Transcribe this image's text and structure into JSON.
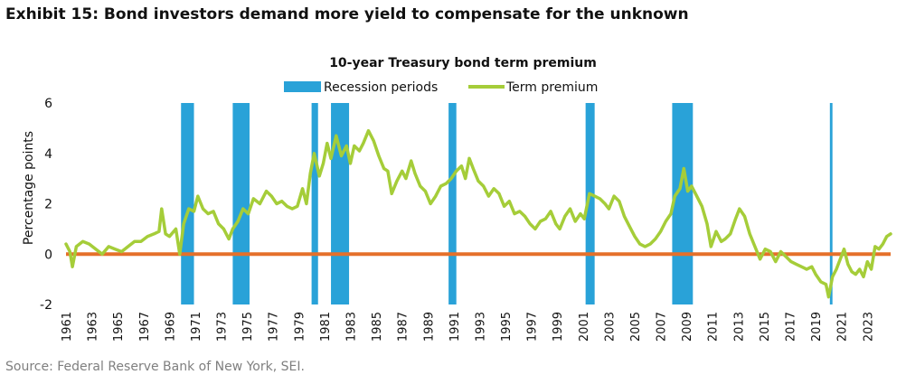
{
  "exhibit_title": "Exhibit 15: Bond investors demand more yield to compensate for the unknown",
  "source": "Source: Federal Reserve Bank of New York, SEI.",
  "colors": {
    "recession": "#29a2d8",
    "term_premium": "#a5cd39",
    "zero_line": "#e5702a",
    "text": "#111111",
    "source_text": "#7f7f7f"
  },
  "chart_data": {
    "type": "line",
    "title": "10-year Treasury bond term premium",
    "ylabel": "Percentage points",
    "xlabel": "",
    "ylim": [
      -2,
      6
    ],
    "yticks": [
      "6",
      "4",
      "2",
      "0",
      "-2"
    ],
    "xlim": [
      1961,
      2024.8
    ],
    "xticks": [
      "1961",
      "1963",
      "1965",
      "1967",
      "1969",
      "1971",
      "1973",
      "1975",
      "1977",
      "1979",
      "1981",
      "1983",
      "1985",
      "1987",
      "1989",
      "1991",
      "1993",
      "1995",
      "1997",
      "1999",
      "2001",
      "2003",
      "2005",
      "2007",
      "2009",
      "2011",
      "2013",
      "2015",
      "2017",
      "2019",
      "2021",
      "2023"
    ],
    "grid": false,
    "legend": {
      "position": "top",
      "recession_label": "Recession periods",
      "series_label": "Term premium"
    },
    "recessions": [
      {
        "start": 1969.9,
        "end": 1970.9
      },
      {
        "start": 1973.9,
        "end": 1975.2
      },
      {
        "start": 1980.0,
        "end": 1980.5
      },
      {
        "start": 1981.5,
        "end": 1982.9
      },
      {
        "start": 1990.6,
        "end": 1991.2
      },
      {
        "start": 2001.2,
        "end": 2001.9
      },
      {
        "start": 2007.9,
        "end": 2009.5
      },
      {
        "start": 2020.1,
        "end": 2020.3
      }
    ],
    "reference_line": {
      "y": 0
    },
    "series": [
      {
        "name": "Term premium",
        "points": [
          [
            1961.0,
            0.4
          ],
          [
            1961.3,
            0.1
          ],
          [
            1961.5,
            -0.5
          ],
          [
            1961.8,
            0.3
          ],
          [
            1962.3,
            0.5
          ],
          [
            1962.8,
            0.4
          ],
          [
            1963.3,
            0.2
          ],
          [
            1963.8,
            0.0
          ],
          [
            1964.3,
            0.3
          ],
          [
            1964.8,
            0.2
          ],
          [
            1965.3,
            0.1
          ],
          [
            1965.8,
            0.3
          ],
          [
            1966.3,
            0.5
          ],
          [
            1966.8,
            0.5
          ],
          [
            1967.3,
            0.7
          ],
          [
            1967.8,
            0.8
          ],
          [
            1968.2,
            0.9
          ],
          [
            1968.4,
            1.8
          ],
          [
            1968.7,
            0.8
          ],
          [
            1969.0,
            0.7
          ],
          [
            1969.5,
            1.0
          ],
          [
            1969.8,
            0.0
          ],
          [
            1970.1,
            1.2
          ],
          [
            1970.5,
            1.8
          ],
          [
            1970.9,
            1.7
          ],
          [
            1971.2,
            2.3
          ],
          [
            1971.6,
            1.8
          ],
          [
            1972.0,
            1.6
          ],
          [
            1972.4,
            1.7
          ],
          [
            1972.8,
            1.2
          ],
          [
            1973.2,
            1.0
          ],
          [
            1973.6,
            0.6
          ],
          [
            1973.9,
            1.0
          ],
          [
            1974.3,
            1.3
          ],
          [
            1974.7,
            1.8
          ],
          [
            1975.1,
            1.6
          ],
          [
            1975.5,
            2.2
          ],
          [
            1976.0,
            2.0
          ],
          [
            1976.5,
            2.5
          ],
          [
            1976.9,
            2.3
          ],
          [
            1977.3,
            2.0
          ],
          [
            1977.7,
            2.1
          ],
          [
            1978.1,
            1.9
          ],
          [
            1978.5,
            1.8
          ],
          [
            1978.9,
            1.9
          ],
          [
            1979.3,
            2.6
          ],
          [
            1979.6,
            2.0
          ],
          [
            1979.9,
            3.2
          ],
          [
            1980.2,
            4.0
          ],
          [
            1980.6,
            3.1
          ],
          [
            1980.9,
            3.6
          ],
          [
            1981.2,
            4.4
          ],
          [
            1981.5,
            3.8
          ],
          [
            1981.9,
            4.7
          ],
          [
            1982.3,
            3.9
          ],
          [
            1982.7,
            4.3
          ],
          [
            1983.0,
            3.6
          ],
          [
            1983.3,
            4.3
          ],
          [
            1983.7,
            4.1
          ],
          [
            1984.0,
            4.4
          ],
          [
            1984.4,
            4.9
          ],
          [
            1984.8,
            4.5
          ],
          [
            1985.2,
            3.9
          ],
          [
            1985.6,
            3.4
          ],
          [
            1985.9,
            3.3
          ],
          [
            1986.2,
            2.4
          ],
          [
            1986.6,
            2.9
          ],
          [
            1987.0,
            3.3
          ],
          [
            1987.3,
            3.0
          ],
          [
            1987.7,
            3.7
          ],
          [
            1988.0,
            3.2
          ],
          [
            1988.4,
            2.7
          ],
          [
            1988.8,
            2.5
          ],
          [
            1989.2,
            2.0
          ],
          [
            1989.6,
            2.3
          ],
          [
            1990.0,
            2.7
          ],
          [
            1990.4,
            2.8
          ],
          [
            1990.8,
            3.0
          ],
          [
            1991.2,
            3.3
          ],
          [
            1991.6,
            3.5
          ],
          [
            1991.9,
            3.0
          ],
          [
            1992.2,
            3.8
          ],
          [
            1992.5,
            3.4
          ],
          [
            1992.9,
            2.9
          ],
          [
            1993.3,
            2.7
          ],
          [
            1993.7,
            2.3
          ],
          [
            1994.1,
            2.6
          ],
          [
            1994.5,
            2.4
          ],
          [
            1994.9,
            1.9
          ],
          [
            1995.3,
            2.1
          ],
          [
            1995.7,
            1.6
          ],
          [
            1996.1,
            1.7
          ],
          [
            1996.5,
            1.5
          ],
          [
            1996.9,
            1.2
          ],
          [
            1997.3,
            1.0
          ],
          [
            1997.7,
            1.3
          ],
          [
            1998.1,
            1.4
          ],
          [
            1998.5,
            1.7
          ],
          [
            1998.9,
            1.2
          ],
          [
            1999.2,
            1.0
          ],
          [
            1999.6,
            1.5
          ],
          [
            2000.0,
            1.8
          ],
          [
            2000.4,
            1.3
          ],
          [
            2000.8,
            1.6
          ],
          [
            2001.1,
            1.4
          ],
          [
            2001.5,
            2.4
          ],
          [
            2001.9,
            2.3
          ],
          [
            2002.3,
            2.2
          ],
          [
            2002.7,
            2.0
          ],
          [
            2003.0,
            1.8
          ],
          [
            2003.4,
            2.3
          ],
          [
            2003.8,
            2.1
          ],
          [
            2004.2,
            1.5
          ],
          [
            2004.6,
            1.1
          ],
          [
            2005.0,
            0.7
          ],
          [
            2005.4,
            0.4
          ],
          [
            2005.8,
            0.3
          ],
          [
            2006.2,
            0.4
          ],
          [
            2006.6,
            0.6
          ],
          [
            2007.0,
            0.9
          ],
          [
            2007.4,
            1.3
          ],
          [
            2007.8,
            1.6
          ],
          [
            2008.1,
            2.3
          ],
          [
            2008.5,
            2.6
          ],
          [
            2008.8,
            3.4
          ],
          [
            2009.1,
            2.5
          ],
          [
            2009.4,
            2.7
          ],
          [
            2009.8,
            2.3
          ],
          [
            2010.2,
            1.9
          ],
          [
            2010.6,
            1.2
          ],
          [
            2010.9,
            0.3
          ],
          [
            2011.3,
            0.9
          ],
          [
            2011.7,
            0.5
          ],
          [
            2012.0,
            0.6
          ],
          [
            2012.4,
            0.8
          ],
          [
            2012.8,
            1.4
          ],
          [
            2013.1,
            1.8
          ],
          [
            2013.5,
            1.5
          ],
          [
            2013.9,
            0.8
          ],
          [
            2014.3,
            0.3
          ],
          [
            2014.7,
            -0.2
          ],
          [
            2015.1,
            0.2
          ],
          [
            2015.5,
            0.1
          ],
          [
            2015.9,
            -0.3
          ],
          [
            2016.3,
            0.1
          ],
          [
            2016.7,
            -0.1
          ],
          [
            2017.1,
            -0.3
          ],
          [
            2017.5,
            -0.4
          ],
          [
            2017.9,
            -0.5
          ],
          [
            2018.3,
            -0.6
          ],
          [
            2018.7,
            -0.5
          ],
          [
            2019.0,
            -0.8
          ],
          [
            2019.4,
            -1.1
          ],
          [
            2019.8,
            -1.2
          ],
          [
            2020.0,
            -1.7
          ],
          [
            2020.3,
            -0.9
          ],
          [
            2020.6,
            -0.6
          ],
          [
            2020.9,
            -0.2
          ],
          [
            2021.2,
            0.2
          ],
          [
            2021.5,
            -0.4
          ],
          [
            2021.8,
            -0.7
          ],
          [
            2022.1,
            -0.8
          ],
          [
            2022.4,
            -0.6
          ],
          [
            2022.7,
            -0.9
          ],
          [
            2023.0,
            -0.3
          ],
          [
            2023.3,
            -0.6
          ],
          [
            2023.6,
            0.3
          ],
          [
            2023.9,
            0.2
          ],
          [
            2024.2,
            0.4
          ],
          [
            2024.5,
            0.7
          ],
          [
            2024.8,
            0.8
          ]
        ]
      }
    ]
  }
}
